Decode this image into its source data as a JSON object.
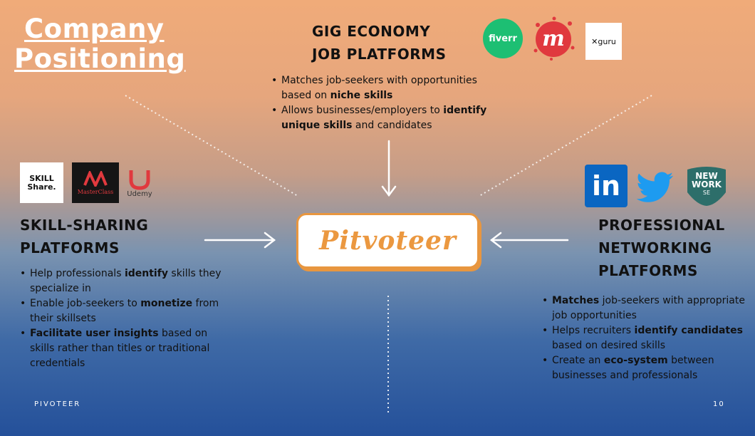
{
  "title": {
    "line1": "Company",
    "line2": "Positioning"
  },
  "center": {
    "label": "Pitvoteer"
  },
  "gig": {
    "heading_line1": "GIG ECONOMY",
    "heading_line2": "JOB PLATFORMS",
    "bullets": [
      {
        "pre": "Matches job-seekers with opportunities based on ",
        "bold": "niche skills",
        "post": ""
      },
      {
        "pre": "Allows businesses/employers to ",
        "bold": "identify unique skills",
        "post": " and candidates"
      }
    ],
    "logos": {
      "fiverr": "fiverr",
      "meetup": "m",
      "guru": "guru"
    }
  },
  "skill": {
    "heading_line1": "SKILL-SHARING",
    "heading_line2": "PLATFORMS",
    "bullets": [
      {
        "pre": "Help professionals ",
        "bold": "identify",
        "post": " skills they specialize in"
      },
      {
        "pre": "Enable job-seekers to ",
        "bold": "monetize",
        "post": " from their skillsets"
      },
      {
        "pre": " ",
        "bold": "Facilitate user insights",
        "post": " based on skills rather than titles or traditional credentials"
      }
    ],
    "logos": {
      "skillshare_line1": "SKILL",
      "skillshare_line2": "Share.",
      "masterclass": "MasterClass",
      "udemy": "Udemy"
    }
  },
  "prof": {
    "heading_line1": "PROFESSIONAL",
    "heading_line2": "NETWORKING",
    "heading_line3": "PLATFORMS",
    "bullets": [
      {
        "pre": "",
        "bold": "Matches",
        "post": " job-seekers with appropriate job opportunities"
      },
      {
        "pre": "Helps recruiters ",
        "bold": "identify candidates",
        "post": " based on desired skills"
      },
      {
        "pre": "Create an ",
        "bold": "eco-system",
        "post": " between businesses and professionals"
      }
    ],
    "logos": {
      "linkedin": "in",
      "newwork_line1": "NEW",
      "newwork_line2": "WORK",
      "newwork_line3": "SE"
    }
  },
  "footer": {
    "brand": "PIVOTEER",
    "page": "10"
  },
  "colors": {
    "accent": "#eb9840",
    "fiverr": "#1dbf73",
    "meetup": "#e0393e",
    "linkedin": "#0a66c2",
    "twitter": "#1d9bf0",
    "newwork": "#2d6e6a"
  }
}
